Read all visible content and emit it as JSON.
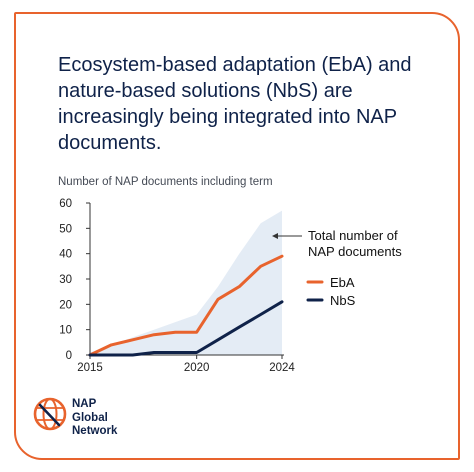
{
  "headline": "Ecosystem-based adaptation (EbA) and nature-based solutions (NbS) are increasingly being integrated into NAP documents.",
  "chart_data": {
    "type": "line",
    "title": "Number of NAP documents including term",
    "ylim": [
      0,
      60
    ],
    "yticks": [
      "0",
      "10",
      "20",
      "30",
      "40",
      "50",
      "60"
    ],
    "xlim": [
      2015,
      2024
    ],
    "xticks": [
      "2015",
      "2020",
      "2024"
    ],
    "x": [
      2015,
      2016,
      2017,
      2018,
      2019,
      2020,
      2021,
      2022,
      2023,
      2024
    ],
    "series": [
      {
        "name": "Total number of NAP documents",
        "style": "area",
        "color": "#e4ecf5",
        "values": [
          1,
          4,
          7,
          10,
          13,
          16,
          27,
          40,
          52,
          57
        ]
      },
      {
        "name": "EbA",
        "style": "line",
        "color": "#e8632d",
        "values": [
          0,
          4,
          6,
          8,
          9,
          9,
          22,
          27,
          35,
          39
        ]
      },
      {
        "name": "NbS",
        "style": "line",
        "color": "#0f2249",
        "values": [
          0,
          0,
          0,
          1,
          1,
          1,
          6,
          11,
          16,
          21
        ]
      }
    ],
    "annotation": {
      "lines": [
        "Total number of",
        "NAP documents"
      ],
      "arrow": "left",
      "target_series": "Total number of NAP documents"
    },
    "legend": [
      {
        "label": "EbA",
        "color": "#e8632d"
      },
      {
        "label": "NbS",
        "color": "#0f2249"
      }
    ],
    "legend_position": "right",
    "grid": false
  },
  "logo": {
    "lines": [
      "NAP",
      "Global",
      "Network"
    ],
    "colors": {
      "orange": "#e8632d",
      "navy": "#0f2249"
    }
  }
}
